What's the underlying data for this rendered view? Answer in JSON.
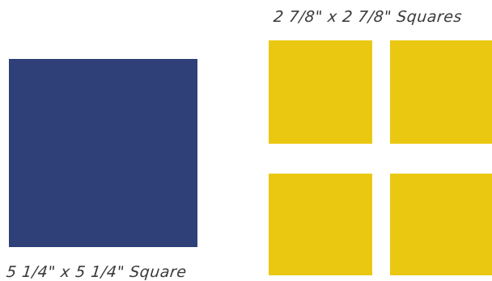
{
  "labels": {
    "small_squares": "2 7/8\" x 2 7/8\"  Squares",
    "big_square": "5 1/4\" x 5 1/4\" Square"
  },
  "colors": {
    "navy": "#2e4077",
    "yellow": "#eac812",
    "background": "#ffffff"
  },
  "shapes": {
    "big_square": {
      "color_name": "navy"
    },
    "small_squares": [
      {
        "color_name": "yellow"
      },
      {
        "color_name": "yellow"
      },
      {
        "color_name": "yellow"
      },
      {
        "color_name": "yellow"
      }
    ]
  }
}
